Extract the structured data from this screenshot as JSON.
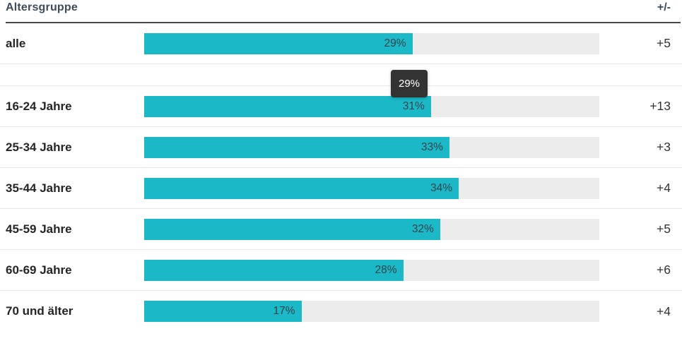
{
  "header": {
    "category_label": "Altersgruppe",
    "change_label": "+/-"
  },
  "tooltip": {
    "value": "29%"
  },
  "colors": {
    "bar": "#1bb9c8",
    "track": "#ececec",
    "tooltip_bg": "#333333",
    "header_rule": "#4a4a4a",
    "separator": "#e8e8e8"
  },
  "chart_data": {
    "type": "bar",
    "orientation": "horizontal",
    "title": "Altersgruppe",
    "categories": [
      "alle",
      "16-24 Jahre",
      "25-34 Jahre",
      "35-44 Jahre",
      "45-59 Jahre",
      "60-69 Jahre",
      "70 und älter"
    ],
    "values": [
      29,
      31,
      33,
      34,
      32,
      28,
      17
    ],
    "value_labels": [
      "29%",
      "31%",
      "33%",
      "34%",
      "32%",
      "28%",
      "17%"
    ],
    "change_column_label": "+/-",
    "changes": [
      "+5",
      "+13",
      "+3",
      "+4",
      "+5",
      "+6",
      "+4"
    ],
    "unit": "%",
    "xlim": [
      0,
      49.2
    ],
    "grid": false,
    "legend": false,
    "group_gap_after_index": 0
  }
}
